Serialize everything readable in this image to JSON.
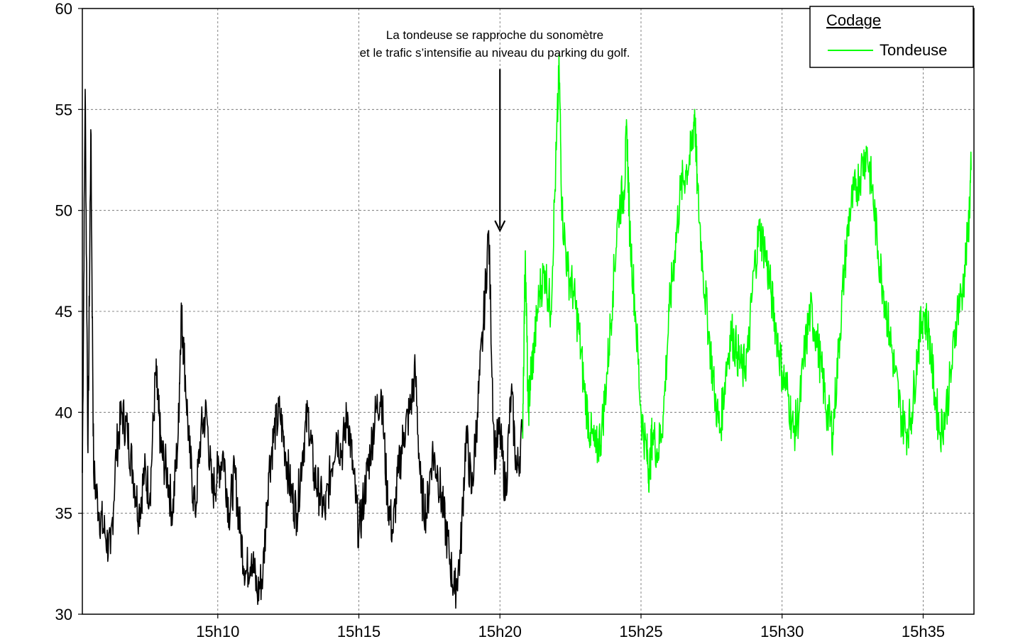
{
  "chart_data": {
    "type": "line",
    "title": "",
    "xlabel": "",
    "ylabel": "",
    "ylim": [
      30,
      60
    ],
    "y_ticks": [
      30,
      35,
      40,
      45,
      50,
      55,
      60
    ],
    "x_ticks": [
      "15h10",
      "15h15",
      "15h20",
      "15h25",
      "15h30",
      "15h35"
    ],
    "x_tick_minutes": [
      10,
      15,
      20,
      25,
      30,
      35
    ],
    "xlim_minutes": [
      5.2,
      36.8
    ],
    "grid": "dashed, both axes",
    "legend": {
      "title": "Codage",
      "placement": "top-right",
      "entries": [
        {
          "name": "Tondeuse",
          "color": "#00ff00"
        }
      ]
    },
    "annotation": {
      "line1": "La tondeuse se rapproche du sonomètre",
      "line2": "et le trafic s’intensifie au niveau du parking du golf.",
      "at_minute": 20,
      "arrow_from_value": 57,
      "arrow_to_value": 49
    },
    "series": [
      {
        "name": "",
        "color": "#000000",
        "x_minutes": [
          5.2,
          5.3,
          5.4,
          5.5,
          5.6,
          5.8,
          6.0,
          6.2,
          6.4,
          6.6,
          6.8,
          7.0,
          7.2,
          7.4,
          7.6,
          7.8,
          7.9,
          8.0,
          8.2,
          8.4,
          8.6,
          8.7,
          8.8,
          9.0,
          9.2,
          9.4,
          9.6,
          9.8,
          10.0,
          10.2,
          10.4,
          10.6,
          10.8,
          11.0,
          11.2,
          11.4,
          11.6,
          11.8,
          12.0,
          12.2,
          12.4,
          12.6,
          12.8,
          13.0,
          13.2,
          13.4,
          13.6,
          13.8,
          14.0,
          14.2,
          14.4,
          14.6,
          14.8,
          15.0,
          15.2,
          15.4,
          15.6,
          15.8,
          16.0,
          16.2,
          16.4,
          16.6,
          16.8,
          17.0,
          17.2,
          17.4,
          17.6,
          17.8,
          18.0,
          18.2,
          18.4,
          18.6,
          18.8,
          19.0,
          19.2,
          19.4,
          19.6,
          19.8,
          20.0,
          20.2,
          20.4,
          20.6,
          20.8
        ],
        "y": [
          37,
          56,
          38,
          54,
          37,
          35,
          34,
          33,
          38,
          40,
          39,
          37,
          35,
          37,
          36,
          42,
          40,
          38,
          37,
          35,
          39,
          45,
          43,
          38,
          35,
          39,
          40,
          36,
          37,
          38,
          35,
          37,
          34,
          32,
          33,
          31,
          32,
          37,
          39,
          40,
          38,
          36,
          35,
          38,
          40,
          37,
          36,
          35,
          37,
          39,
          38,
          40,
          37,
          34,
          36,
          38,
          40,
          41,
          36,
          34,
          37,
          39,
          40,
          42,
          36,
          35,
          38,
          37,
          35,
          33,
          31,
          33,
          39,
          36,
          40,
          44,
          49,
          38,
          39,
          36,
          41,
          37,
          39
        ]
      },
      {
        "name": "Tondeuse",
        "color": "#00ff00",
        "x_minutes": [
          20.8,
          20.9,
          21.0,
          21.1,
          21.2,
          21.4,
          21.6,
          21.8,
          22.0,
          22.1,
          22.2,
          22.4,
          22.6,
          22.8,
          23.0,
          23.2,
          23.4,
          23.6,
          23.8,
          24.0,
          24.2,
          24.4,
          24.5,
          24.6,
          24.8,
          25.0,
          25.2,
          25.3,
          25.4,
          25.6,
          25.8,
          26.0,
          26.2,
          26.4,
          26.6,
          26.8,
          26.9,
          27.0,
          27.2,
          27.4,
          27.6,
          27.8,
          28.0,
          28.2,
          28.4,
          28.6,
          28.8,
          29.0,
          29.2,
          29.4,
          29.6,
          29.8,
          30.0,
          30.2,
          30.4,
          30.6,
          30.8,
          31.0,
          31.2,
          31.4,
          31.6,
          31.8,
          32.0,
          32.2,
          32.4,
          32.6,
          32.8,
          33.0,
          33.2,
          33.4,
          33.6,
          33.8,
          34.0,
          34.2,
          34.4,
          34.6,
          34.8,
          35.0,
          35.2,
          35.4,
          35.6,
          35.8,
          36.0,
          36.2,
          36.4,
          36.6,
          36.7
        ],
        "y": [
          39,
          48,
          40,
          42,
          43,
          46,
          47,
          45,
          53,
          57,
          50,
          47,
          46,
          44,
          41,
          39,
          38,
          39,
          42,
          46,
          50,
          51,
          54,
          49,
          45,
          40,
          38,
          37,
          39,
          38,
          40,
          45,
          48,
          51,
          52,
          53,
          55,
          51,
          47,
          44,
          41,
          39,
          42,
          44,
          43,
          42,
          43,
          47,
          49,
          48,
          46,
          44,
          42,
          41,
          39,
          40,
          43,
          45,
          44,
          42,
          40,
          39,
          43,
          47,
          50,
          51,
          52,
          53,
          51,
          48,
          46,
          44,
          42,
          40,
          39,
          40,
          43,
          45,
          44,
          41,
          39,
          40,
          42,
          45,
          46,
          49,
          52
        ]
      }
    ]
  }
}
